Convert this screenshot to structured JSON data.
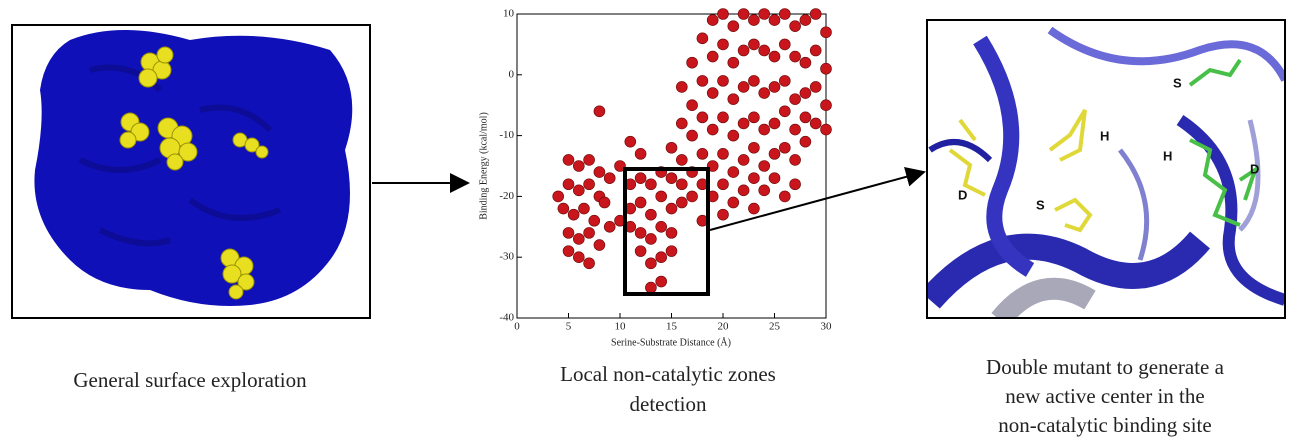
{
  "chart_data": {
    "type": "scatter",
    "xlabel": "Serine-Substrate Distance (Å)",
    "ylabel": "Binding Energy (kcal/mol)",
    "xlim": [
      0,
      30
    ],
    "ylim": [
      -40,
      10
    ],
    "xticks": [
      0,
      5,
      10,
      15,
      20,
      25,
      30
    ],
    "yticks": [
      -40,
      -30,
      -20,
      -10,
      0,
      10
    ],
    "color": "#c8161c",
    "x": [
      16,
      17,
      18,
      19,
      20,
      21,
      22,
      23,
      24,
      25,
      26,
      27,
      28,
      29,
      30,
      16,
      17,
      18,
      19,
      20,
      21,
      22,
      23,
      24,
      25,
      26,
      27,
      28,
      29,
      30,
      15,
      16,
      17,
      18,
      19,
      20,
      21,
      22,
      23,
      24,
      25,
      26,
      27,
      28,
      29,
      30,
      16,
      17,
      18,
      19,
      20,
      21,
      22,
      23,
      24,
      25,
      26,
      27,
      28,
      29,
      30,
      17,
      18,
      19,
      20,
      21,
      22,
      23,
      24,
      25,
      26,
      27,
      28,
      19,
      20,
      21,
      22,
      23,
      24,
      25,
      26,
      27,
      18,
      20,
      23,
      5,
      6,
      7,
      8,
      5,
      6,
      7,
      8,
      9,
      4.5,
      5.5,
      6.5,
      7.5,
      8.5,
      5,
      6,
      7,
      8,
      6,
      7,
      5,
      9,
      11,
      12,
      13,
      14,
      15,
      11,
      12,
      13,
      14,
      15,
      16,
      12,
      13,
      14,
      15,
      11,
      13,
      14,
      12,
      14,
      13,
      15,
      4,
      8,
      10,
      11,
      10,
      12
    ],
    "values": [
      -2,
      2,
      6,
      9,
      10,
      8,
      10,
      9,
      10,
      9,
      10,
      8,
      9,
      10,
      7,
      -8,
      -5,
      -1,
      3,
      5,
      2,
      4,
      5,
      4,
      3,
      5,
      3,
      2,
      4,
      1,
      -12,
      -14,
      -10,
      -7,
      -3,
      -1,
      -4,
      -2,
      -1,
      -3,
      -2,
      -1,
      -4,
      -3,
      -2,
      -5,
      -18,
      -16,
      -13,
      -9,
      -7,
      -10,
      -8,
      -7,
      -9,
      -8,
      -6,
      -9,
      -7,
      -8,
      -9,
      -20,
      -18,
      -15,
      -13,
      -16,
      -14,
      -12,
      -15,
      -13,
      -12,
      -14,
      -11,
      -20,
      -18,
      -21,
      -19,
      -17,
      -19,
      -17,
      -20,
      -18,
      -24,
      -23,
      -22,
      -14,
      -15,
      -14,
      -16,
      -18,
      -19,
      -18,
      -20,
      -17,
      -22,
      -23,
      -22,
      -24,
      -21,
      -26,
      -27,
      -26,
      -28,
      -30,
      -31,
      -29,
      -25,
      -18,
      -17,
      -18,
      -16,
      -17,
      -22,
      -21,
      -23,
      -20,
      -22,
      -21,
      -26,
      -27,
      -25,
      -26,
      -25,
      -31,
      -30,
      -29,
      -34,
      -35,
      -29,
      -20,
      -6,
      -24,
      -11,
      -15,
      -13
    ]
  },
  "captions": [
    "General surface exploration",
    [
      "Local non-catalytic zones",
      "detection"
    ],
    [
      "Double mutant to generate a",
      "new active center in the",
      "non-catalytic binding site"
    ]
  ],
  "residue_labels": [
    "S",
    "H",
    "H",
    "D",
    "D",
    "S"
  ]
}
